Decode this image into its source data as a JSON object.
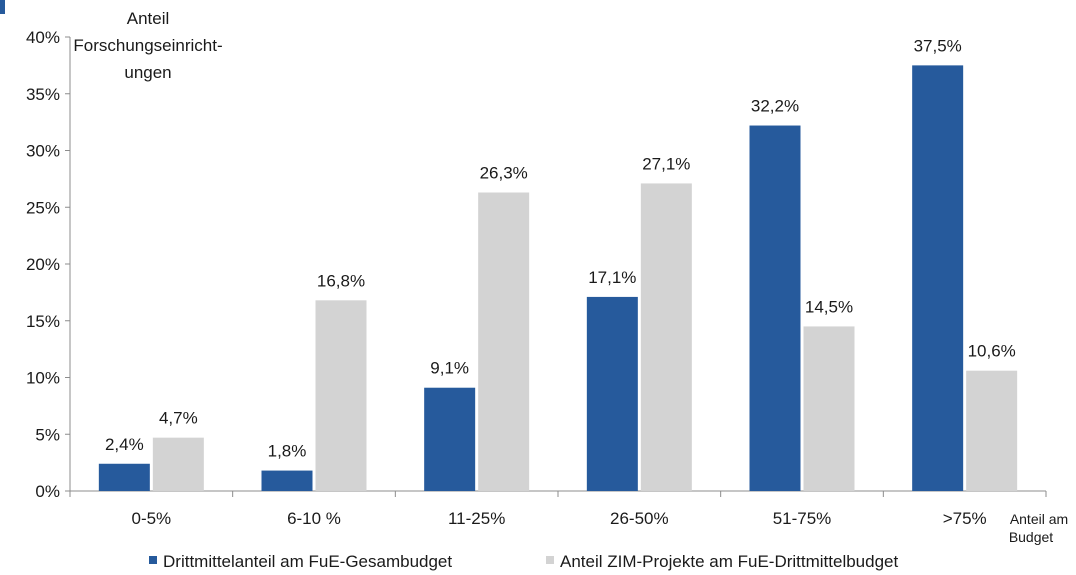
{
  "chart_data": {
    "type": "bar",
    "categories": [
      "0-5%",
      "6-10 %",
      "11-25%",
      "26-50%",
      "51-75%",
      ">75%"
    ],
    "series": [
      {
        "name": "Drittmittelanteil am FuE-Gesambudget",
        "values": [
          2.4,
          1.8,
          9.1,
          17.1,
          32.2,
          37.5
        ],
        "labels": [
          "2,4%",
          "1,8%",
          "9,1%",
          "17,1%",
          "32,2%",
          "37,5%"
        ],
        "color": "#265a9c"
      },
      {
        "name": "Anteil ZIM-Projekte am FuE-Drittmittelbudget",
        "values": [
          4.7,
          16.8,
          26.3,
          27.1,
          14.5,
          10.6
        ],
        "labels": [
          "4,7%",
          "16,8%",
          "26,3%",
          "27,1%",
          "14,5%",
          "10,6%"
        ],
        "color": "#d3d3d3"
      }
    ],
    "ylabel": [
      "Anteil",
      "Forschungseinricht-",
      "ungen"
    ],
    "xlabel": [
      "Anteil am",
      "Budget"
    ],
    "ylim": [
      0,
      40
    ],
    "yticks": [
      0,
      5,
      10,
      15,
      20,
      25,
      30,
      35,
      40
    ],
    "ytick_labels": [
      "0%",
      "5%",
      "10%",
      "15%",
      "20%",
      "25%",
      "30%",
      "35%",
      "40%"
    ],
    "grid": false,
    "legend_position": "bottom",
    "accent_color": "#265a9c"
  }
}
